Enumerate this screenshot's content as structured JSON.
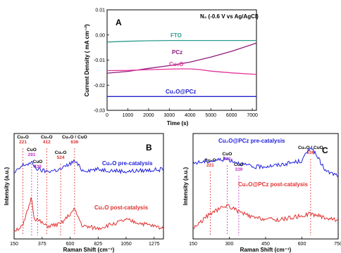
{
  "chart_data": [
    {
      "type": "line",
      "panel_label": "A",
      "condition": "N₂ (-0.6 V vs Ag/AgCl)",
      "xlabel": "Time (s)",
      "ylabel": "Current Density ( mA cm⁻²)",
      "xlim": [
        0,
        7200
      ],
      "ylim": [
        -0.03,
        0.01
      ],
      "xticks": [
        0,
        1000,
        2000,
        3000,
        4000,
        5000,
        6000,
        7000
      ],
      "yticks": [
        0.01,
        0.0,
        -0.01,
        -0.02,
        -0.03
      ],
      "ytick_labels": [
        "0.01",
        "0.00",
        "-0.01",
        "-0.02",
        "-0.03"
      ],
      "series": [
        {
          "name": "FTO",
          "color": "#2a9d8f",
          "x": [
            0,
            1000,
            2000,
            3000,
            4000,
            5000,
            6000,
            7200
          ],
          "y": [
            -0.0028,
            -0.0025,
            -0.0023,
            -0.0022,
            -0.0022,
            -0.0022,
            -0.0022,
            -0.0022
          ]
        },
        {
          "name": "PCz",
          "color": "#8e1b7d",
          "x": [
            0,
            1000,
            2000,
            3000,
            4000,
            5000,
            6000,
            7200
          ],
          "y": [
            -0.0152,
            -0.0145,
            -0.0133,
            -0.0122,
            -0.0108,
            -0.0088,
            -0.0065,
            -0.0032
          ]
        },
        {
          "name": "Cu₂O",
          "color": "#e6339a",
          "x": [
            0,
            1000,
            2000,
            3000,
            3500,
            4000,
            4500,
            5000,
            6000,
            7200
          ],
          "y": [
            -0.0142,
            -0.0141,
            -0.0138,
            -0.0136,
            -0.0135,
            -0.0135,
            -0.0138,
            -0.0144,
            -0.0151,
            -0.0157
          ]
        },
        {
          "name": "Cu₂O@PCz",
          "color": "#2222cc",
          "x": [
            0,
            1000,
            2000,
            3000,
            4000,
            5000,
            6000,
            7200
          ],
          "y": [
            -0.0245,
            -0.0245,
            -0.0245,
            -0.0245,
            -0.0245,
            -0.0245,
            -0.0245,
            -0.0245
          ]
        }
      ]
    },
    {
      "type": "line",
      "panel_label": "B",
      "xlabel": "Raman Shift (cm⁻¹)",
      "ylabel": "Intensity (a.u.)",
      "xlim": [
        150,
        1350
      ],
      "xticks": [
        150,
        375,
        600,
        825,
        1050,
        1275
      ],
      "annotations": [
        {
          "text": "Cu₂O",
          "value": "221",
          "x": 221,
          "color": "#e03030"
        },
        {
          "text": "CuO",
          "value": "291",
          "x": 291,
          "color": "#c030c0"
        },
        {
          "text": "CuO",
          "value": "339",
          "x": 339,
          "color": "#c030c0"
        },
        {
          "text": "Cu₂O",
          "value": "412",
          "x": 412,
          "color": "#e03030"
        },
        {
          "text": "Cu₂O",
          "value": "524",
          "x": 524,
          "color": "#e03030"
        },
        {
          "text": "Cu₂O / CuO",
          "value": "636",
          "x": 636,
          "color": "#e03030"
        }
      ],
      "series": [
        {
          "name": "Cu₂O pre-catalysis",
          "color": "#2222dd",
          "x": [
            150,
            221,
            291,
            339,
            412,
            524,
            636,
            700,
            825,
            1050,
            1350
          ],
          "y": [
            0.62,
            0.7,
            0.72,
            0.66,
            0.64,
            0.66,
            0.74,
            0.65,
            0.66,
            0.64,
            0.66
          ]
        },
        {
          "name": "Cu₂O post-catalysis",
          "color": "#e03030",
          "x": [
            150,
            221,
            291,
            310,
            339,
            412,
            524,
            636,
            700,
            825,
            1050,
            1350
          ],
          "y": [
            0.08,
            0.12,
            0.4,
            0.2,
            0.18,
            0.12,
            0.14,
            0.28,
            0.12,
            0.1,
            0.18,
            0.1
          ]
        }
      ]
    },
    {
      "type": "line",
      "panel_label": "C",
      "xlabel": "Raman Shift (cm⁻¹)",
      "ylabel": "Intensity (a.u.)",
      "xlim": [
        150,
        750
      ],
      "xticks": [
        150,
        300,
        450,
        600,
        750
      ],
      "annotations": [
        {
          "text": "Cu₂O",
          "value": "221",
          "x": 221,
          "color": "#e03030"
        },
        {
          "text": "CuO",
          "value": "291",
          "x": 291,
          "color": "#c030c0"
        },
        {
          "text": "CuO",
          "value": "339",
          "x": 339,
          "color": "#c030c0"
        },
        {
          "text": "Cu₂O / CuO",
          "value": "636",
          "x": 636,
          "color": "#e03030"
        }
      ],
      "series": [
        {
          "name": "Cu₂O@PCz pre-catalysis",
          "color": "#2222dd",
          "x": [
            150,
            221,
            291,
            339,
            400,
            500,
            600,
            636,
            700,
            750
          ],
          "y": [
            0.72,
            0.74,
            0.76,
            0.72,
            0.68,
            0.7,
            0.74,
            0.88,
            0.64,
            0.6
          ]
        },
        {
          "name": "Cu₂O@PCz post-catalysis",
          "color": "#e03030",
          "x": [
            150,
            221,
            291,
            339,
            400,
            500,
            600,
            636,
            700,
            750
          ],
          "y": [
            0.1,
            0.24,
            0.32,
            0.26,
            0.2,
            0.18,
            0.22,
            0.24,
            0.2,
            0.18
          ]
        }
      ]
    }
  ]
}
